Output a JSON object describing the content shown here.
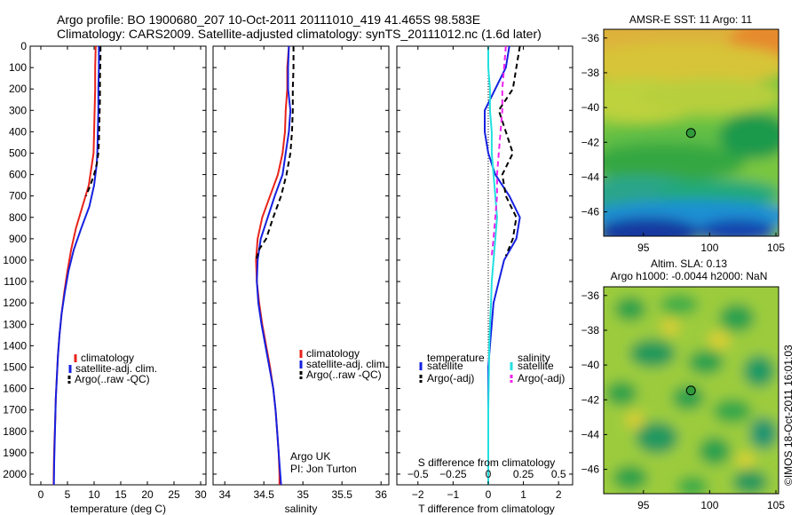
{
  "header": {
    "line1": "Argo profile: BO 1900680_207 10-Oct-2011 20111010_419 41.465S 98.583E",
    "line2": "Climatology: CARS2009. Satellite-adjusted climatology: synTS_20111012.nc (1.6d later)"
  },
  "credit": {
    "line1": "Argo UK",
    "line2": "PI: Jon Turton"
  },
  "stamp": "©IMOS 18-Oct-2011 16:01:03",
  "colors": {
    "red": "#e8231a",
    "blue": "#1520e0",
    "black": "#000000",
    "cyan": "#22e0e0",
    "magenta": "#ee22ee"
  },
  "chart_data": [
    {
      "type": "line",
      "xlabel": "temperature (deg C)",
      "xlim": [
        -2,
        31
      ],
      "ylim": [
        2050,
        0
      ],
      "xticks": [
        0,
        5,
        10,
        15,
        20,
        25,
        30
      ],
      "yticks": [
        0,
        100,
        200,
        300,
        400,
        500,
        600,
        700,
        800,
        900,
        1000,
        1100,
        1200,
        1300,
        1400,
        1500,
        1600,
        1700,
        1800,
        1900,
        2000
      ],
      "legend": {
        "placement": "bottom-right",
        "entries": [
          "climatology",
          "satellite-adj. clim.",
          "Argo(..raw -QC)"
        ]
      },
      "series": [
        {
          "name": "climatology",
          "color": "red",
          "dash": "",
          "width": 2,
          "x": [
            10.3,
            10.2,
            10.2,
            10.1,
            10.0,
            9.9,
            9.6,
            9.0,
            7.8,
            6.6,
            5.7,
            5.0,
            4.4,
            3.9,
            3.5,
            3.2,
            3.0,
            2.8,
            2.7,
            2.55,
            2.45,
            2.4
          ],
          "y": [
            0,
            100,
            200,
            300,
            400,
            500,
            550,
            650,
            750,
            850,
            950,
            1050,
            1150,
            1250,
            1350,
            1450,
            1550,
            1650,
            1750,
            1850,
            1950,
            2050
          ]
        },
        {
          "name": "satellite-adj. clim.",
          "color": "blue",
          "dash": "",
          "width": 2,
          "x": [
            10.9,
            10.9,
            10.8,
            10.8,
            10.7,
            10.6,
            10.5,
            10.0,
            9.1,
            7.6,
            6.2,
            5.2,
            4.5,
            3.9,
            3.5,
            3.2,
            3.0,
            2.8,
            2.7,
            2.6,
            2.5,
            2.45
          ],
          "y": [
            0,
            100,
            200,
            300,
            400,
            500,
            550,
            650,
            750,
            850,
            950,
            1050,
            1150,
            1250,
            1350,
            1450,
            1550,
            1650,
            1750,
            1850,
            1950,
            2050
          ]
        },
        {
          "name": "Argo(..raw -QC)",
          "color": "black",
          "dash": "6,4",
          "width": 2,
          "x": [
            11.2,
            11.2,
            11.1,
            11.1,
            11.0,
            10.9,
            10.8,
            10.5,
            10.0,
            9.3,
            8.5
          ],
          "y": [
            0,
            50,
            150,
            250,
            350,
            450,
            500,
            550,
            600,
            650,
            700
          ]
        }
      ]
    },
    {
      "type": "line",
      "xlabel": "salinity",
      "xlim": [
        33.85,
        36.1
      ],
      "ylim": [
        2050,
        0
      ],
      "xticks": [
        34,
        34.5,
        35,
        35.5,
        36
      ],
      "legend": {
        "placement": "bottom-right",
        "entries": [
          "climatology",
          "satellite-adj. clim.",
          "Argo(..raw -QC)"
        ]
      },
      "series": [
        {
          "name": "climatology",
          "color": "red",
          "dash": "",
          "width": 2,
          "x": [
            34.82,
            34.8,
            34.8,
            34.78,
            34.77,
            34.74,
            34.68,
            34.58,
            34.48,
            34.42,
            34.4,
            34.41,
            34.44,
            34.48,
            34.53,
            34.58,
            34.62,
            34.65,
            34.67,
            34.69,
            34.7,
            34.7
          ],
          "y": [
            0,
            100,
            200,
            300,
            400,
            500,
            600,
            700,
            800,
            900,
            1000,
            1100,
            1200,
            1300,
            1400,
            1500,
            1600,
            1700,
            1800,
            1900,
            2000,
            2050
          ]
        },
        {
          "name": "satellite-adj. clim.",
          "color": "blue",
          "dash": "",
          "width": 2,
          "x": [
            34.82,
            34.81,
            34.81,
            34.84,
            34.82,
            34.78,
            34.74,
            34.64,
            34.55,
            34.46,
            34.42,
            34.41,
            34.43,
            34.47,
            34.52,
            34.57,
            34.62,
            34.65,
            34.67,
            34.69,
            34.71,
            34.72
          ],
          "y": [
            0,
            100,
            200,
            300,
            400,
            500,
            600,
            700,
            800,
            900,
            1000,
            1100,
            1200,
            1300,
            1400,
            1500,
            1600,
            1700,
            1800,
            1900,
            2000,
            2050
          ]
        },
        {
          "name": "Argo(..raw -QC)",
          "color": "black",
          "dash": "6,4",
          "width": 2,
          "x": [
            34.88,
            34.88,
            34.87,
            34.87,
            34.86,
            34.84,
            34.79,
            34.72,
            34.62,
            34.53,
            34.44,
            34.4
          ],
          "y": [
            0,
            100,
            200,
            300,
            400,
            500,
            600,
            700,
            800,
            900,
            950,
            1000
          ]
        }
      ]
    },
    {
      "type": "line",
      "xlabel": "T difference from climatology",
      "top_axis_label": "S difference from climatology",
      "xlim": [
        -2.6,
        2.4
      ],
      "ylim": [
        2050,
        0
      ],
      "xticks": [
        -2,
        -1,
        0,
        1,
        2
      ],
      "top_ticks": [
        "-0.5",
        "-0.25",
        "0",
        "0.25",
        "0.5"
      ],
      "legend": {
        "placement": "bottom",
        "temp_title": "temperature",
        "sal_title": "salinity",
        "entries": [
          "satellite",
          "Argo(-adj)",
          "satellite",
          "Argo(-adj)"
        ]
      },
      "series": [
        {
          "name": "satellite",
          "group": "temperature",
          "color": "blue",
          "dash": "",
          "width": 2,
          "x": [
            0.6,
            0.5,
            0.2,
            -0.1,
            -0.1,
            0.0,
            0.2,
            0.6,
            0.9,
            0.8,
            0.45,
            0.3,
            0.15,
            0.1,
            0.05,
            0.0,
            0.0,
            0.0,
            0.0,
            0.0,
            0.0,
            0.0
          ],
          "y": [
            0,
            100,
            200,
            300,
            400,
            500,
            600,
            700,
            800,
            900,
            1000,
            1100,
            1200,
            1300,
            1400,
            1500,
            1600,
            1700,
            1800,
            1900,
            2000,
            2050
          ]
        },
        {
          "name": "Argo(-adj)",
          "group": "temperature",
          "color": "black",
          "dash": "6,4",
          "width": 2,
          "x": [
            0.9,
            0.8,
            0.7,
            0.3,
            0.5,
            0.7,
            0.4,
            0.5,
            0.8,
            0.7,
            0.5
          ],
          "y": [
            0,
            100,
            200,
            300,
            400,
            500,
            600,
            700,
            800,
            900,
            980
          ]
        },
        {
          "name": "satellite",
          "group": "salinity",
          "color": "cyan",
          "dash": "",
          "width": 2,
          "x": [
            0.0,
            0.0,
            0.05,
            0.05,
            0.1,
            0.1,
            0.15,
            0.2,
            0.25,
            0.2,
            0.15,
            0.1,
            0.08,
            0.05,
            0.03,
            0.02,
            0.01,
            0.0,
            0.0,
            0.0,
            0.0,
            0.0
          ],
          "y": [
            0,
            100,
            200,
            300,
            400,
            500,
            600,
            700,
            800,
            900,
            1000,
            1100,
            1200,
            1300,
            1400,
            1500,
            1600,
            1700,
            1800,
            1900,
            2000,
            2050
          ]
        },
        {
          "name": "Argo(-adj)",
          "group": "salinity",
          "color": "magenta",
          "dash": "6,4",
          "width": 2,
          "x": [
            0.5,
            0.45,
            0.4,
            0.4,
            0.35,
            0.3,
            0.25,
            0.25,
            0.2,
            0.15,
            0.1
          ],
          "y": [
            0,
            100,
            200,
            300,
            400,
            500,
            600,
            700,
            800,
            900,
            980
          ]
        }
      ]
    },
    {
      "type": "heatmap",
      "title": "AMSR-E SST: 11 Argo: 11",
      "xlim": [
        92,
        105.2
      ],
      "ylim": [
        -47.4,
        -35.5
      ],
      "xticks": [
        95,
        100,
        105
      ],
      "yticks": [
        -36,
        -38,
        -40,
        -42,
        -44,
        -46
      ],
      "marker": {
        "lon": 98.583,
        "lat": -41.465
      }
    },
    {
      "type": "heatmap",
      "title": "Altim. SLA: 0.13",
      "subtitle": "Argo h1000: -0.0044 h2000: NaN",
      "xlim": [
        92,
        105.2
      ],
      "ylim": [
        -47.4,
        -35.5
      ],
      "xticks": [
        95,
        100,
        105
      ],
      "yticks": [
        -36,
        -38,
        -40,
        -42,
        -44,
        -46
      ],
      "marker": {
        "lon": 98.583,
        "lat": -41.465
      }
    }
  ]
}
